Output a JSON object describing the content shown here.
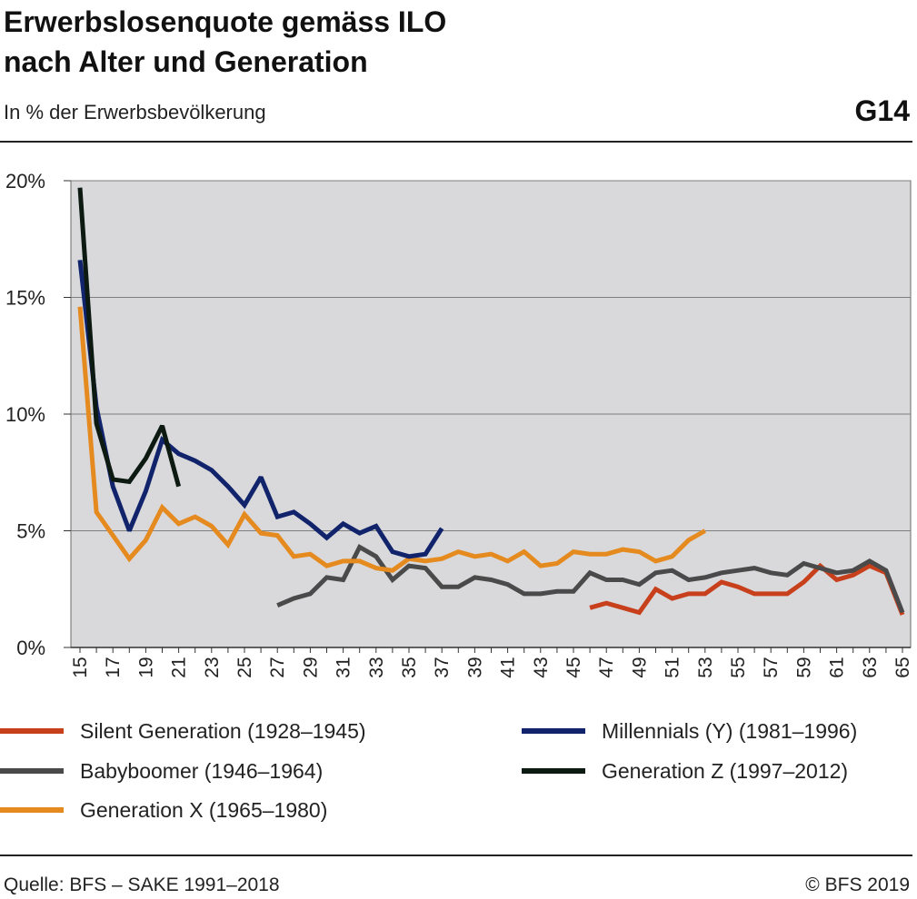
{
  "header": {
    "title_line1": "Erwerbslosenquote gemäss ILO",
    "title_line2": "nach Alter und Generation",
    "subtitle": "In % der Erwerbsbevölkerung",
    "code": "G14"
  },
  "footer": {
    "source": "Quelle: BFS – SAKE 1991–2018",
    "copyright": "© BFS 2019"
  },
  "chart_data": {
    "type": "line",
    "title": "Erwerbslosenquote gemäss ILO nach Alter und Generation",
    "subtitle": "In % der Erwerbsbevölkerung",
    "xlabel": "",
    "ylabel": "",
    "xlim": [
      15,
      65
    ],
    "ylim": [
      0,
      20
    ],
    "x_ticks": [
      15,
      17,
      19,
      21,
      23,
      25,
      27,
      29,
      31,
      33,
      35,
      37,
      39,
      41,
      43,
      45,
      47,
      49,
      51,
      53,
      55,
      57,
      59,
      61,
      63,
      65
    ],
    "y_ticks": [
      0,
      5,
      10,
      15,
      20
    ],
    "y_tick_labels": [
      "0%",
      "5%",
      "10%",
      "15%",
      "20%"
    ],
    "grid": true,
    "legend_position": "bottom",
    "colors": {
      "plot_background": "#d9d9dc",
      "grid": "#7f7f7f",
      "silent": "#c8401b",
      "boomer": "#4a4a4a",
      "genx": "#e58a1f",
      "millennials": "#10236b",
      "genz": "#0c1a12"
    },
    "series": [
      {
        "name": "Silent Generation (1928–1945)",
        "color": "#c8401b",
        "x": [
          46,
          47,
          48,
          49,
          50,
          51,
          52,
          53,
          54,
          55,
          56,
          57,
          58,
          59,
          60,
          61,
          62,
          63,
          64,
          65
        ],
        "values": [
          1.7,
          1.9,
          1.7,
          1.5,
          2.5,
          2.1,
          2.3,
          2.3,
          2.8,
          2.6,
          2.3,
          2.3,
          2.3,
          2.8,
          3.5,
          2.9,
          3.1,
          3.5,
          3.2,
          1.4
        ]
      },
      {
        "name": "Babyboomer (1946–1964)",
        "color": "#4a4a4a",
        "x": [
          27,
          28,
          29,
          30,
          31,
          32,
          33,
          34,
          35,
          36,
          37,
          38,
          39,
          40,
          41,
          42,
          43,
          44,
          45,
          46,
          47,
          48,
          49,
          50,
          51,
          52,
          53,
          54,
          55,
          56,
          57,
          58,
          59,
          60,
          61,
          62,
          63,
          64,
          65
        ],
        "values": [
          1.8,
          2.1,
          2.3,
          3.0,
          2.9,
          4.3,
          3.9,
          2.9,
          3.5,
          3.4,
          2.6,
          2.6,
          3.0,
          2.9,
          2.7,
          2.3,
          2.3,
          2.4,
          2.4,
          3.2,
          2.9,
          2.9,
          2.7,
          3.2,
          3.3,
          2.9,
          3.0,
          3.2,
          3.3,
          3.4,
          3.2,
          3.1,
          3.6,
          3.4,
          3.2,
          3.3,
          3.7,
          3.3,
          1.5
        ]
      },
      {
        "name": "Generation X (1965–1980)",
        "color": "#e58a1f",
        "x": [
          15,
          16,
          17,
          18,
          19,
          20,
          21,
          22,
          23,
          24,
          25,
          26,
          27,
          28,
          29,
          30,
          31,
          32,
          33,
          34,
          35,
          36,
          37,
          38,
          39,
          40,
          41,
          42,
          43,
          44,
          45,
          46,
          47,
          48,
          49,
          50,
          51,
          52,
          53
        ],
        "values": [
          14.6,
          5.8,
          4.8,
          3.8,
          4.6,
          6.0,
          5.3,
          5.6,
          5.2,
          4.4,
          5.7,
          4.9,
          4.8,
          3.9,
          4.0,
          3.5,
          3.7,
          3.7,
          3.4,
          3.3,
          3.8,
          3.7,
          3.8,
          4.1,
          3.9,
          4.0,
          3.7,
          4.1,
          3.5,
          3.6,
          4.1,
          4.0,
          4.0,
          4.2,
          4.1,
          3.7,
          3.9,
          4.6,
          5.0
        ]
      },
      {
        "name": "Millennials (Y) (1981–1996)",
        "color": "#10236b",
        "x": [
          15,
          16,
          17,
          18,
          19,
          20,
          21,
          22,
          23,
          24,
          25,
          26,
          27,
          28,
          29,
          30,
          31,
          32,
          33,
          34,
          35,
          36,
          37
        ],
        "values": [
          16.6,
          10.3,
          6.9,
          5.0,
          6.7,
          8.9,
          8.3,
          8.0,
          7.6,
          6.9,
          6.1,
          7.3,
          5.6,
          5.8,
          5.3,
          4.7,
          5.3,
          4.9,
          5.2,
          4.1,
          3.9,
          4.0,
          5.1
        ]
      },
      {
        "name": "Generation Z (1997–2012)",
        "color": "#0c1a12",
        "x": [
          15,
          16,
          17,
          18,
          19,
          20,
          21
        ],
        "values": [
          19.7,
          9.6,
          7.2,
          7.1,
          8.1,
          9.5,
          6.9
        ]
      }
    ]
  }
}
